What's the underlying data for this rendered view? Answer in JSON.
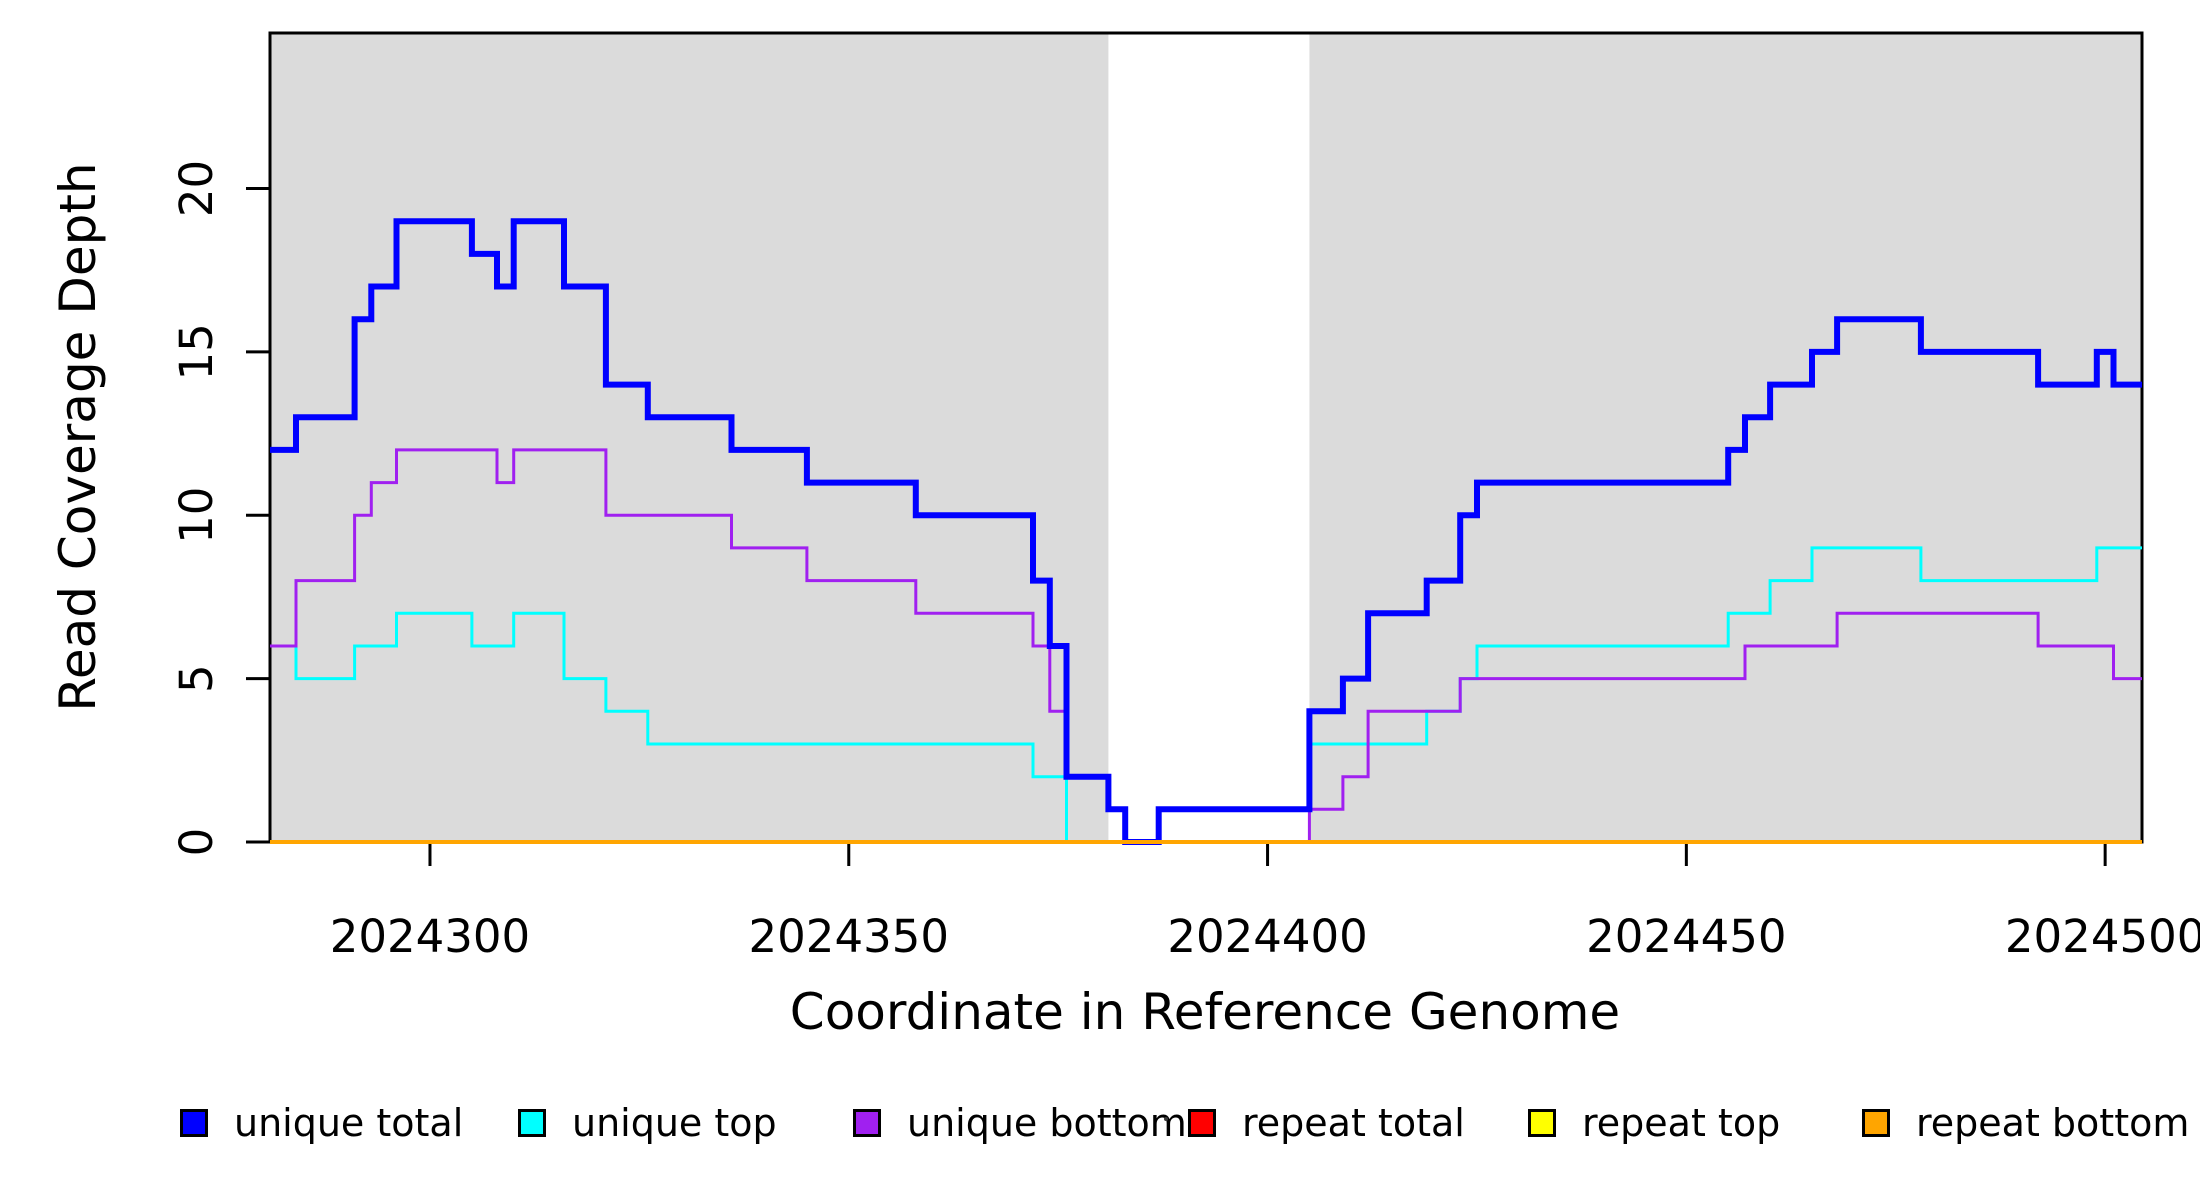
{
  "figure": {
    "background": "#ffffff",
    "plot_background_shaded": "#DBDBDB",
    "gap_background": "#ffffff"
  },
  "y_axis": {
    "title": "Read Coverage Depth",
    "tick_labels": [
      "0",
      "5",
      "10",
      "15",
      "20"
    ]
  },
  "x_axis": {
    "title": "Coordinate in Reference Genome",
    "tick_labels": [
      "2024300",
      "2024350",
      "2024400",
      "2024450",
      "2024500"
    ]
  },
  "legend": {
    "items": [
      {
        "label": "unique total",
        "color": "#0000FF"
      },
      {
        "label": "unique top",
        "color": "#00FFFF"
      },
      {
        "label": "unique bottom",
        "color": "#A020F0"
      },
      {
        "label": "repeat total",
        "color": "#FF0000"
      },
      {
        "label": "repeat top",
        "color": "#FFFF00"
      },
      {
        "label": "repeat bottom",
        "color": "#FFA500"
      }
    ]
  },
  "chart_data": {
    "type": "line",
    "subtype": "step-post",
    "title": "",
    "xlabel": "Coordinate in Reference Genome",
    "ylabel": "Read Coverage Depth",
    "xlim": [
      2024280.9,
      2024504.4
    ],
    "ylim": [
      0,
      24.76
    ],
    "x_ticks": [
      2024300,
      2024350,
      2024400,
      2024450,
      2024500
    ],
    "y_ticks": [
      0,
      5,
      10,
      15,
      20
    ],
    "grid": false,
    "legend_position": "bottom",
    "shaded_regions": [
      {
        "x0": 2024280.9,
        "x1": 2024381,
        "color": "#DBDBDB"
      },
      {
        "x0": 2024405,
        "x1": 2024504.4,
        "color": "#DBDBDB"
      }
    ],
    "series": [
      {
        "name": "unique total",
        "color": "#0000FF",
        "width": 6,
        "steps": [
          [
            2024281,
            12
          ],
          [
            2024284,
            13
          ],
          [
            2024291,
            16
          ],
          [
            2024293,
            17
          ],
          [
            2024296,
            19
          ],
          [
            2024305,
            18
          ],
          [
            2024308,
            17
          ],
          [
            2024310,
            19
          ],
          [
            2024316,
            17
          ],
          [
            2024321,
            14
          ],
          [
            2024326,
            13
          ],
          [
            2024336,
            12
          ],
          [
            2024345,
            11
          ],
          [
            2024358,
            10
          ],
          [
            2024372,
            8
          ],
          [
            2024374,
            6
          ],
          [
            2024376,
            2
          ],
          [
            2024381,
            1
          ],
          [
            2024383,
            0
          ],
          [
            2024387,
            1
          ],
          [
            2024405,
            4
          ],
          [
            2024409,
            5
          ],
          [
            2024412,
            7
          ],
          [
            2024419,
            8
          ],
          [
            2024423,
            10
          ],
          [
            2024425,
            11
          ],
          [
            2024455,
            12
          ],
          [
            2024457,
            13
          ],
          [
            2024460,
            14
          ],
          [
            2024465,
            15
          ],
          [
            2024468,
            16
          ],
          [
            2024478,
            15
          ],
          [
            2024492,
            14
          ],
          [
            2024499,
            15
          ],
          [
            2024501,
            14
          ]
        ]
      },
      {
        "name": "unique top",
        "color": "#00FFFF",
        "width": 3,
        "steps": [
          [
            2024281,
            6
          ],
          [
            2024284,
            5
          ],
          [
            2024291,
            6
          ],
          [
            2024296,
            7
          ],
          [
            2024305,
            6
          ],
          [
            2024310,
            7
          ],
          [
            2024316,
            5
          ],
          [
            2024321,
            4
          ],
          [
            2024326,
            3
          ],
          [
            2024372,
            2
          ],
          [
            2024376,
            0
          ],
          [
            2024387,
            1
          ],
          [
            2024405,
            3
          ],
          [
            2024419,
            4
          ],
          [
            2024423,
            5
          ],
          [
            2024425,
            6
          ],
          [
            2024455,
            7
          ],
          [
            2024460,
            8
          ],
          [
            2024465,
            9
          ],
          [
            2024478,
            8
          ],
          [
            2024499,
            9
          ]
        ]
      },
      {
        "name": "unique bottom",
        "color": "#A020F0",
        "width": 3,
        "steps": [
          [
            2024281,
            6
          ],
          [
            2024284,
            8
          ],
          [
            2024291,
            10
          ],
          [
            2024293,
            11
          ],
          [
            2024296,
            12
          ],
          [
            2024308,
            11
          ],
          [
            2024310,
            12
          ],
          [
            2024321,
            10
          ],
          [
            2024336,
            9
          ],
          [
            2024345,
            8
          ],
          [
            2024358,
            7
          ],
          [
            2024372,
            6
          ],
          [
            2024374,
            4
          ],
          [
            2024376,
            2
          ],
          [
            2024381,
            1
          ],
          [
            2024383,
            0
          ],
          [
            2024405,
            1
          ],
          [
            2024409,
            2
          ],
          [
            2024412,
            4
          ],
          [
            2024423,
            5
          ],
          [
            2024457,
            6
          ],
          [
            2024468,
            7
          ],
          [
            2024492,
            6
          ],
          [
            2024501,
            5
          ]
        ]
      },
      {
        "name": "repeat total",
        "color": "#FF0000",
        "width": 3,
        "steps": [
          [
            2024281,
            0
          ]
        ]
      },
      {
        "name": "repeat top",
        "color": "#FFFF00",
        "width": 3,
        "steps": [
          [
            2024281,
            0
          ]
        ]
      },
      {
        "name": "repeat bottom",
        "color": "#FFA500",
        "width": 4,
        "steps": [
          [
            2024281,
            0
          ]
        ]
      }
    ]
  }
}
